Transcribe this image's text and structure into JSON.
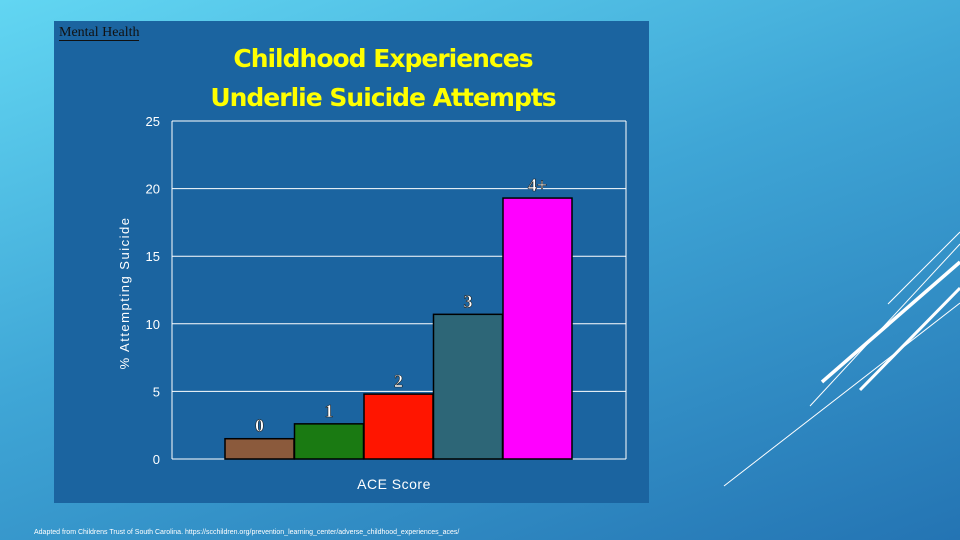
{
  "slide": {
    "tag": "Mental Health",
    "title_line1": "Childhood Experiences",
    "title_line2": "Underlie Suicide Attempts",
    "source": "Adapted from Childrens Trust of South Carolina. https://scchildren.org/prevention_learning_center/adverse_childhood_experiences_aces/"
  },
  "chart_data": {
    "type": "bar",
    "categories": [
      "0",
      "1",
      "2",
      "3",
      "4+"
    ],
    "values": [
      1.5,
      2.6,
      4.8,
      10.7,
      19.3
    ],
    "colors": [
      "#8b5a3c",
      "#1a7a12",
      "#ff1500",
      "#2d6677",
      "#ff00ff"
    ],
    "xlabel": "ACE Score",
    "ylabel": "% Attempting Suicide",
    "ylim": [
      0,
      25
    ],
    "yticks": [
      "0",
      "5",
      "10",
      "15",
      "20",
      "25"
    ],
    "grid": true,
    "plot_background": "#1b64a0",
    "gridline_color": "#ffffff"
  }
}
